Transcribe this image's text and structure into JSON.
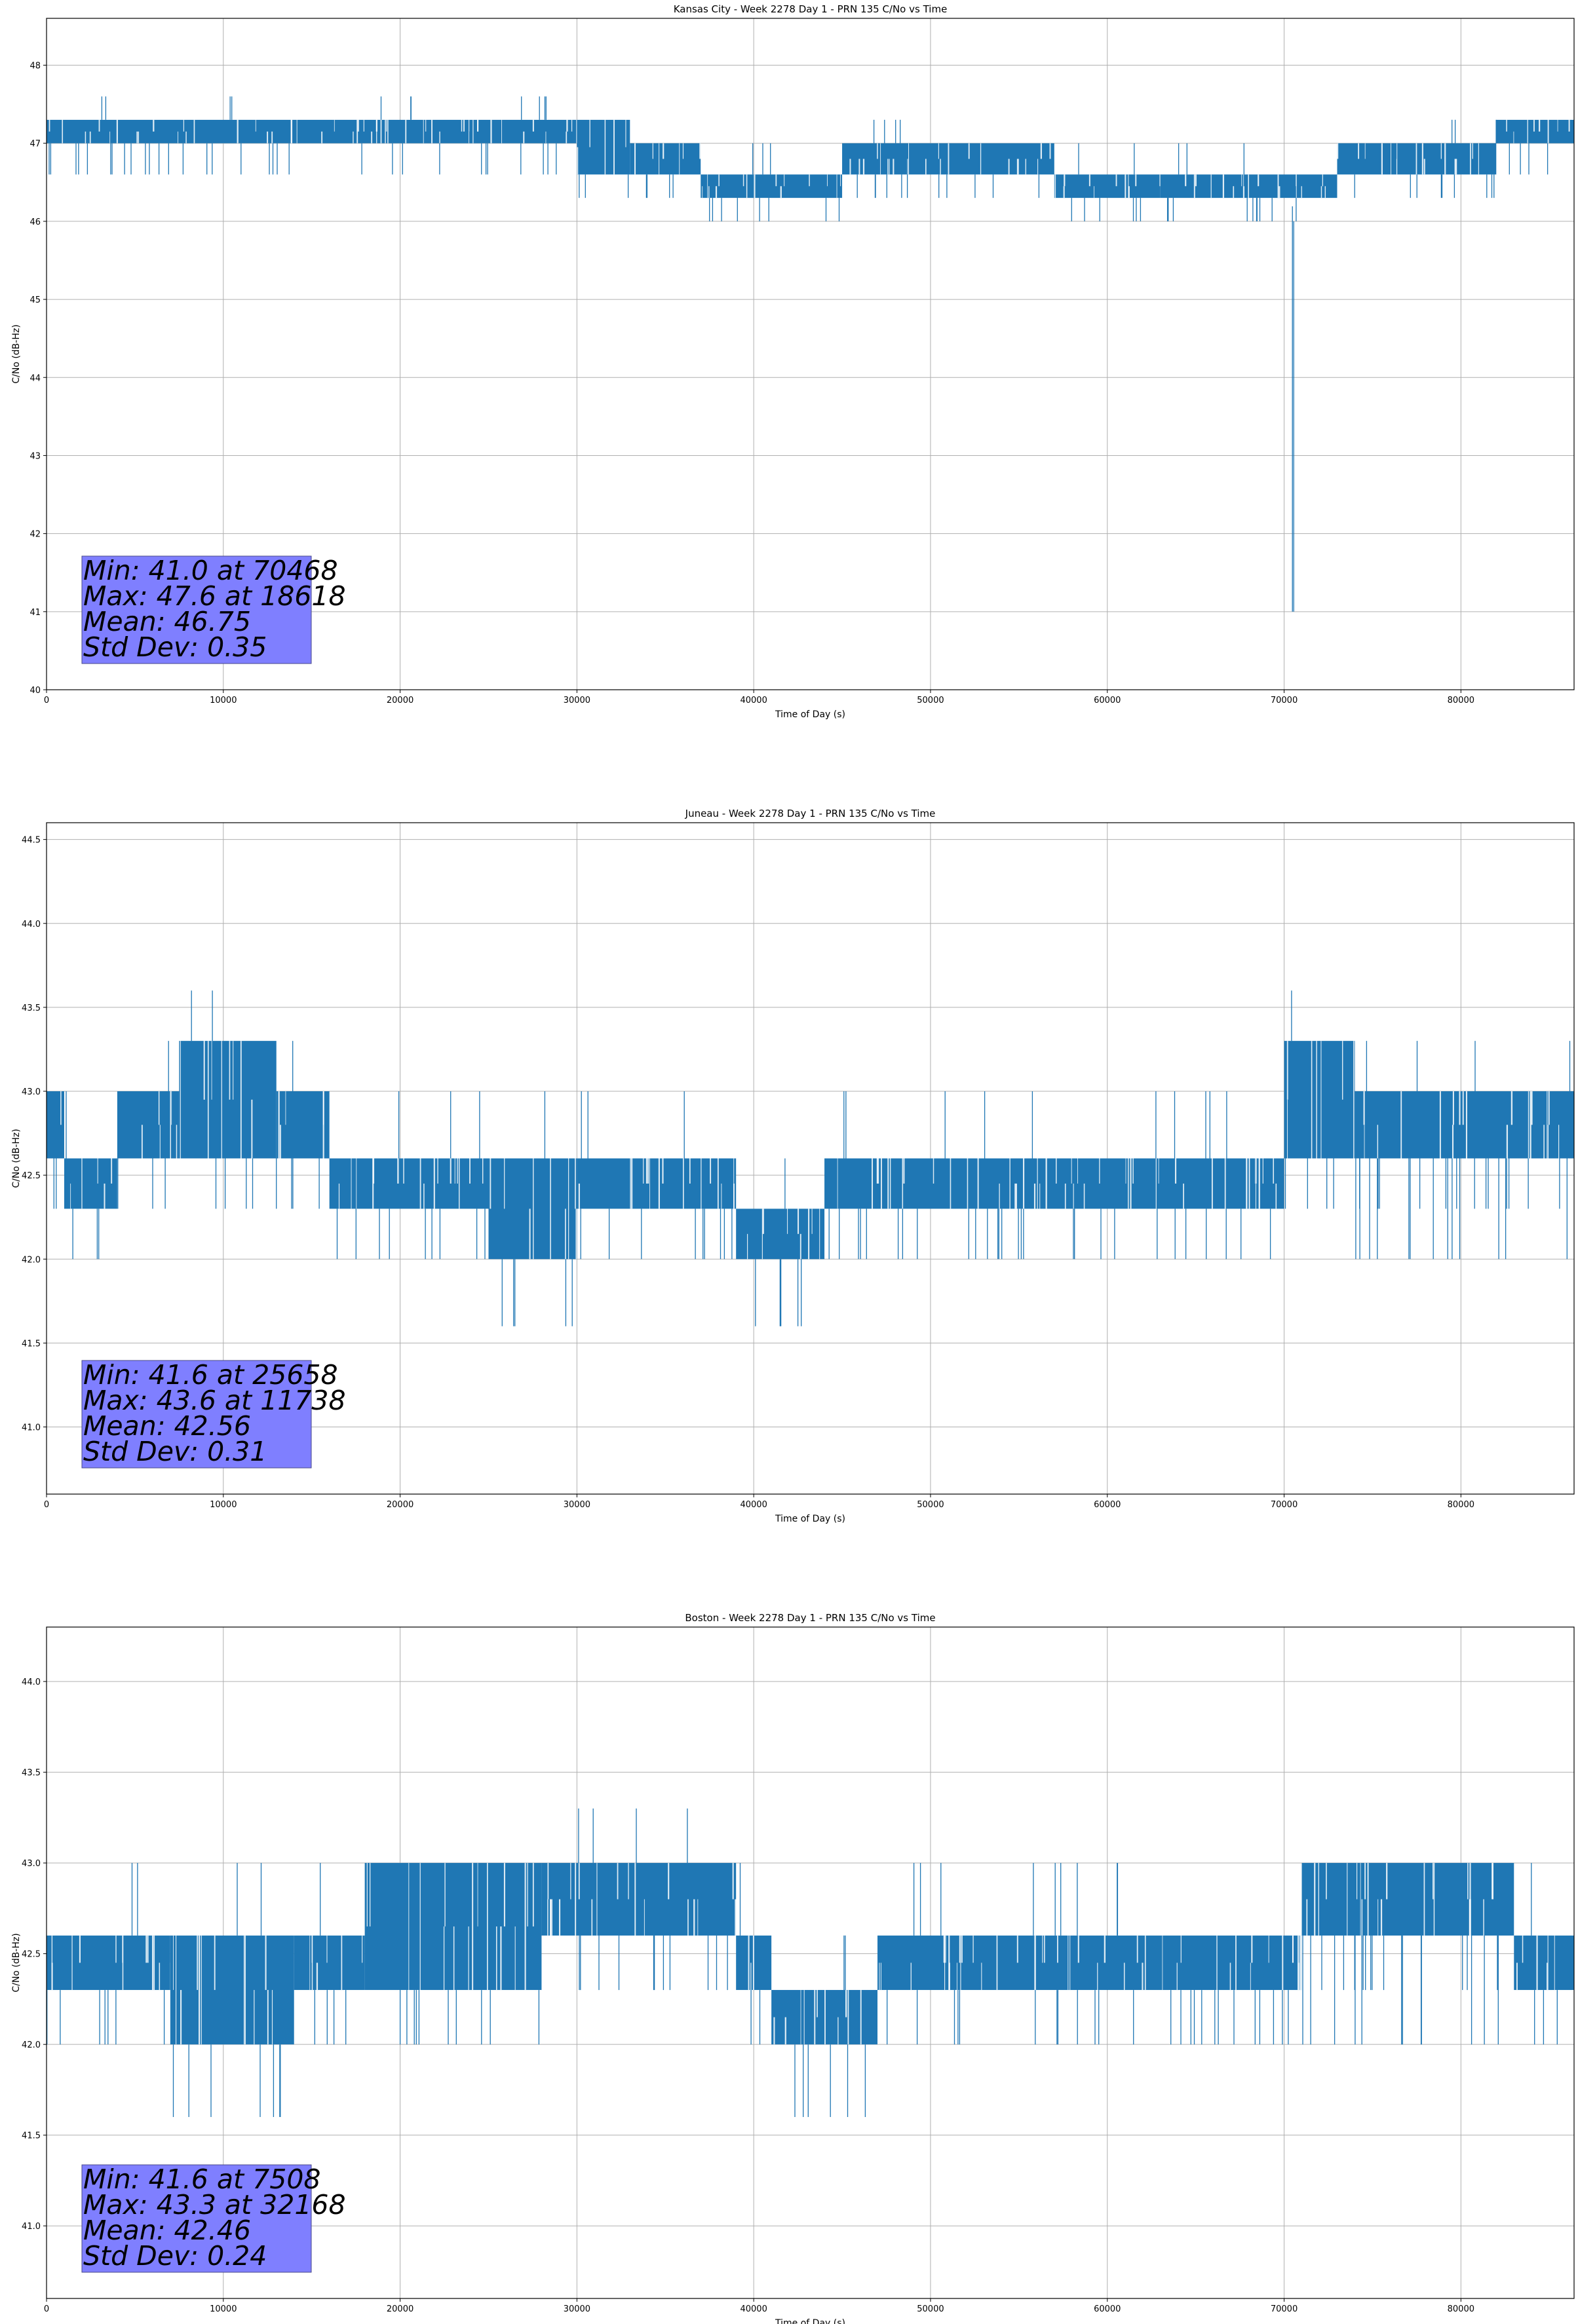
{
  "chart_data": [
    {
      "type": "line",
      "title": "Kansas City - Week 2278 Day 1 - PRN 135 C/No vs Time",
      "xlabel": "Time of Day (s)",
      "ylabel": "C/No (dB-Hz)",
      "xlim": [
        0,
        86400
      ],
      "ylim": [
        40,
        48.6
      ],
      "xticks": [
        0,
        10000,
        20000,
        30000,
        40000,
        50000,
        60000,
        70000,
        80000
      ],
      "yticks": [
        40,
        41,
        42,
        43,
        44,
        45,
        46,
        47,
        48
      ],
      "ytick_labels": [
        "40",
        "41",
        "42",
        "43",
        "44",
        "45",
        "46",
        "47",
        "48"
      ],
      "grid": true,
      "color": "#1f77b4",
      "stats": [
        "Min: 41.0 at 70468",
        "Max: 47.6 at 18618",
        "Mean: 46.75",
        "Std Dev: 0.35"
      ],
      "bands": [
        {
          "x": [
            0,
            30000
          ],
          "lo": 47.0,
          "hi": 47.3,
          "spikes_down": [
            46.6
          ],
          "spikes_up": [
            47.6
          ]
        },
        {
          "x": [
            30000,
            33000
          ],
          "lo": 46.6,
          "hi": 47.3,
          "spikes_down": [
            46.3
          ]
        },
        {
          "x": [
            33000,
            37000
          ],
          "lo": 46.6,
          "hi": 47.0,
          "spikes_down": [
            46.3
          ]
        },
        {
          "x": [
            37000,
            45000
          ],
          "lo": 46.3,
          "hi": 46.6,
          "spikes_down": [
            46.0
          ],
          "spikes_up": [
            47.0
          ]
        },
        {
          "x": [
            45000,
            57000
          ],
          "lo": 46.6,
          "hi": 47.0,
          "spikes_down": [
            46.3
          ],
          "spikes_up": [
            47.3
          ]
        },
        {
          "x": [
            57000,
            63000
          ],
          "lo": 46.3,
          "hi": 46.6,
          "spikes_down": [
            46.0
          ],
          "spikes_up": [
            47.0
          ]
        },
        {
          "x": [
            63000,
            73000
          ],
          "lo": 46.3,
          "hi": 46.6,
          "spikes_down": [
            46.0
          ],
          "spikes_up": [
            47.0
          ]
        },
        {
          "x": [
            73000,
            82000
          ],
          "lo": 46.6,
          "hi": 47.0,
          "spikes_down": [
            46.3
          ],
          "spikes_up": [
            47.3
          ]
        },
        {
          "x": [
            82000,
            86400
          ],
          "lo": 47.0,
          "hi": 47.3,
          "spikes_down": [
            46.6
          ]
        }
      ],
      "dips": [
        {
          "x": 70468,
          "y": 41.0
        }
      ]
    },
    {
      "type": "line",
      "title": "Juneau - Week 2278 Day 1 - PRN 135 C/No vs Time",
      "xlabel": "Time of Day (s)",
      "ylabel": "C/No (dB-Hz)",
      "xlim": [
        0,
        86400
      ],
      "ylim": [
        40.6,
        44.6
      ],
      "xticks": [
        0,
        10000,
        20000,
        30000,
        40000,
        50000,
        60000,
        70000,
        80000
      ],
      "yticks": [
        41.0,
        41.5,
        42.0,
        42.5,
        43.0,
        43.5,
        44.0,
        44.5
      ],
      "ytick_labels": [
        "41.0",
        "41.5",
        "42.0",
        "42.5",
        "43.0",
        "43.5",
        "44.0",
        "44.5"
      ],
      "grid": true,
      "color": "#1f77b4",
      "stats": [
        "Min: 41.6 at 25658",
        "Max: 43.6 at 11738",
        "Mean: 42.56",
        "Std Dev: 0.31"
      ],
      "bands": [
        {
          "x": [
            0,
            1000
          ],
          "lo": 42.6,
          "hi": 43.0,
          "spikes_down": [
            42.3
          ]
        },
        {
          "x": [
            1000,
            4000
          ],
          "lo": 42.3,
          "hi": 42.6,
          "spikes_down": [
            42.0
          ],
          "spikes_up": [
            43.0
          ]
        },
        {
          "x": [
            4000,
            7500
          ],
          "lo": 42.6,
          "hi": 43.0,
          "spikes_down": [
            42.3
          ],
          "spikes_up": [
            43.3
          ]
        },
        {
          "x": [
            7500,
            13000
          ],
          "lo": 42.6,
          "hi": 43.3,
          "spikes_down": [
            42.3
          ],
          "spikes_up": [
            43.6
          ]
        },
        {
          "x": [
            13000,
            16000
          ],
          "lo": 42.6,
          "hi": 43.0,
          "spikes_down": [
            42.3
          ],
          "spikes_up": [
            43.3
          ]
        },
        {
          "x": [
            16000,
            25000
          ],
          "lo": 42.3,
          "hi": 42.6,
          "spikes_down": [
            42.0
          ],
          "spikes_up": [
            43.0
          ]
        },
        {
          "x": [
            25000,
            30000
          ],
          "lo": 42.0,
          "hi": 42.6,
          "spikes_down": [
            41.6
          ],
          "spikes_up": [
            43.0
          ]
        },
        {
          "x": [
            30000,
            39000
          ],
          "lo": 42.3,
          "hi": 42.6,
          "spikes_down": [
            42.0
          ],
          "spikes_up": [
            43.0
          ]
        },
        {
          "x": [
            39000,
            44000
          ],
          "lo": 42.0,
          "hi": 42.3,
          "spikes_down": [
            41.6
          ],
          "spikes_up": [
            42.6
          ]
        },
        {
          "x": [
            44000,
            70000
          ],
          "lo": 42.3,
          "hi": 42.6,
          "spikes_down": [
            42.0
          ],
          "spikes_up": [
            43.0
          ]
        },
        {
          "x": [
            70000,
            74000
          ],
          "lo": 42.6,
          "hi": 43.3,
          "spikes_down": [
            42.3
          ],
          "spikes_up": [
            43.6
          ]
        },
        {
          "x": [
            74000,
            86400
          ],
          "lo": 42.6,
          "hi": 43.0,
          "spikes_down": [
            42.3,
            42.0
          ],
          "spikes_up": [
            43.3
          ]
        }
      ],
      "dips": []
    },
    {
      "type": "line",
      "title": "Boston - Week 2278 Day 1 - PRN 135 C/No vs Time",
      "xlabel": "Time of Day (s)",
      "ylabel": "C/No (dB-Hz)",
      "xlim": [
        0,
        86400
      ],
      "ylim": [
        40.6,
        44.3
      ],
      "xticks": [
        0,
        10000,
        20000,
        30000,
        40000,
        50000,
        60000,
        70000,
        80000
      ],
      "yticks": [
        41.0,
        41.5,
        42.0,
        42.5,
        43.0,
        43.5,
        44.0
      ],
      "ytick_labels": [
        "41.0",
        "41.5",
        "42.0",
        "42.5",
        "43.0",
        "43.5",
        "44.0"
      ],
      "grid": true,
      "color": "#1f77b4",
      "stats": [
        "Min: 41.6 at 7508",
        "Max: 43.3 at 32168",
        "Mean: 42.46",
        "Std Dev: 0.24"
      ],
      "bands": [
        {
          "x": [
            0,
            7000
          ],
          "lo": 42.3,
          "hi": 42.6,
          "spikes_down": [
            42.0
          ],
          "spikes_up": [
            43.0
          ]
        },
        {
          "x": [
            7000,
            14000
          ],
          "lo": 42.0,
          "hi": 42.6,
          "spikes_down": [
            41.6
          ],
          "spikes_up": [
            43.0
          ]
        },
        {
          "x": [
            14000,
            18000
          ],
          "lo": 42.3,
          "hi": 42.6,
          "spikes_down": [
            42.0
          ],
          "spikes_up": [
            43.0
          ]
        },
        {
          "x": [
            18000,
            28000
          ],
          "lo": 42.3,
          "hi": 43.0,
          "spikes_down": [
            42.0
          ]
        },
        {
          "x": [
            28000,
            39000
          ],
          "lo": 42.6,
          "hi": 43.0,
          "spikes_down": [
            42.3
          ],
          "spikes_up": [
            43.3
          ]
        },
        {
          "x": [
            39000,
            41000
          ],
          "lo": 42.3,
          "hi": 42.6,
          "spikes_down": [
            42.0
          ],
          "spikes_up": [
            43.0
          ]
        },
        {
          "x": [
            41000,
            47000
          ],
          "lo": 42.0,
          "hi": 42.3,
          "spikes_down": [
            41.6
          ],
          "spikes_up": [
            42.6
          ]
        },
        {
          "x": [
            47000,
            71000
          ],
          "lo": 42.3,
          "hi": 42.6,
          "spikes_down": [
            42.0
          ],
          "spikes_up": [
            43.0
          ]
        },
        {
          "x": [
            71000,
            83000
          ],
          "lo": 42.6,
          "hi": 43.0,
          "spikes_down": [
            42.3,
            42.0
          ]
        },
        {
          "x": [
            83000,
            86400
          ],
          "lo": 42.3,
          "hi": 42.6,
          "spikes_down": [
            42.0
          ],
          "spikes_up": [
            43.0
          ]
        }
      ],
      "dips": []
    }
  ]
}
